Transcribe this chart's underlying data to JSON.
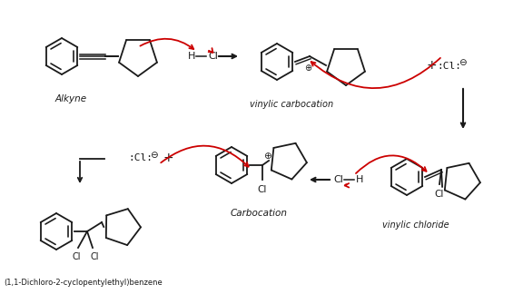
{
  "bg_color": "#ffffff",
  "line_color": "#1a1a1a",
  "arrow_color": "#cc0000",
  "text_color": "#1a1a1a",
  "labels": {
    "alkyne": "Alkyne",
    "vinylic_carbocation": "vinylic carbocation",
    "carbocation": "Carbocation",
    "vinylic_chloride": "vinylic chloride",
    "product": "(1,1-Dichloro-2-cyclopentylethyl)benzene",
    "oplus": "⊕",
    "ominus": "⊖",
    "plus": "+"
  },
  "figsize": [
    5.76,
    3.35
  ],
  "dpi": 100
}
